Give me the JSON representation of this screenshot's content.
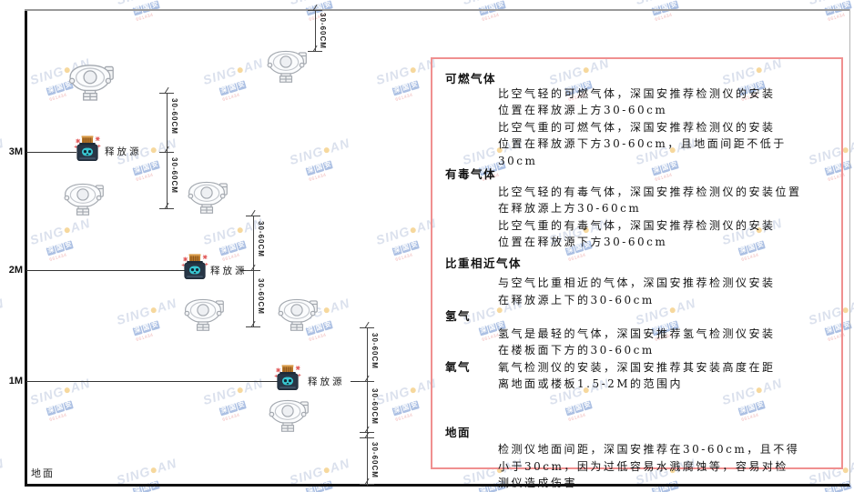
{
  "watermark": {
    "brand_left": "SING",
    "brand_right": "AN",
    "company_chars": [
      "深",
      "国",
      "安"
    ],
    "code": "661434"
  },
  "diagram": {
    "axis_labels": {
      "m3": "3M",
      "m2": "2M",
      "m1": "1M"
    },
    "ground_label": "地面",
    "release_source_label": "释放源",
    "dim_label": "30-60CM"
  },
  "panel": {
    "sections": [
      {
        "heading": "可燃气体",
        "paragraphs": [
          "比空气轻的可燃气体，深国安推荐检测仪的安装\n位置在释放源上方30-60cm",
          "比空气重的可燃气体，深国安推荐检测仪的安装\n位置在释放源下方30-60cm，且地面间距不低于\n30cm"
        ]
      },
      {
        "heading": "有毒气体",
        "paragraphs": [
          "比空气轻的有毒气体，深国安推荐检测仪的安装位置\n在释放源上方30-60cm",
          "比空气重的有毒气体，深国安推荐检测仪的安装\n位置在释放源下方30-60cm"
        ]
      },
      {
        "heading": "比重相近气体",
        "paragraphs": [
          "与空气比重相近的气体，深国安推荐检测仪安装\n在释放源上下的30-60cm"
        ]
      },
      {
        "heading": "氢气",
        "paragraphs": [
          "氢气是最轻的气体，深国安推荐氢气检测仪安装\n在楼板面下方的30-60cm"
        ]
      },
      {
        "heading": "氧气",
        "paragraphs": [
          "氧气检测仪的安装，深国安推荐其安装高度在距\n离地面或楼板1.5-2M的范围内"
        ]
      },
      {
        "heading": "地面",
        "paragraphs": [
          "检测仪地面间距，深国安推荐在30-60cm，且不得\n小于30cm，因为过低容易水溅腐蚀等，容易对检\n测仪造成伤害"
        ]
      }
    ]
  }
}
